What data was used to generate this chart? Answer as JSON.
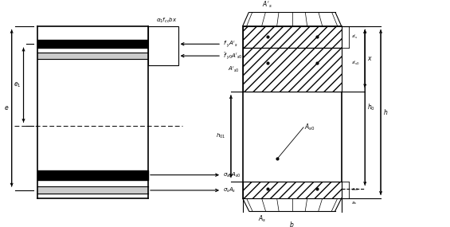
{
  "fig_width": 5.65,
  "fig_height": 2.85,
  "dpi": 100,
  "bg_color": "#ffffff",
  "lc": "#000000"
}
